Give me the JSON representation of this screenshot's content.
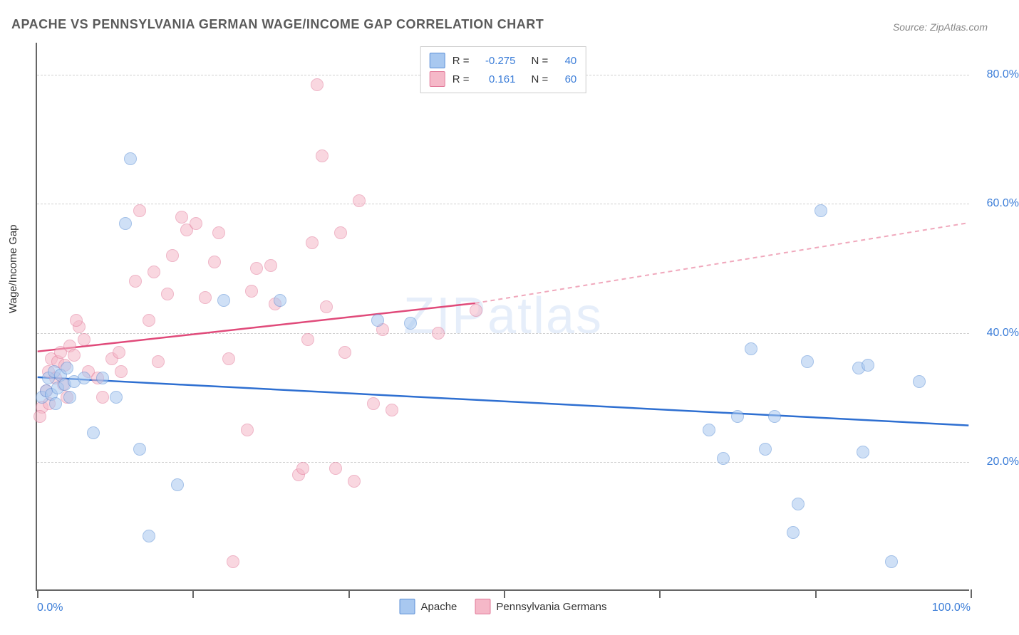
{
  "title": "APACHE VS PENNSYLVANIA GERMAN WAGE/INCOME GAP CORRELATION CHART",
  "source": "Source: ZipAtlas.com",
  "ylabel": "Wage/Income Gap",
  "watermark": "ZIPatlas",
  "chart": {
    "type": "scatter",
    "background_color": "#ffffff",
    "grid_color": "#d0d0d0",
    "axis_color": "#666666",
    "tick_label_color": "#3b7dd8",
    "tick_label_fontsize": 16,
    "title_fontsize": 18,
    "title_color": "#5a5a5a",
    "ylabel_fontsize": 15,
    "xlim": [
      0,
      100
    ],
    "ylim": [
      0,
      85
    ],
    "yticks": [
      20,
      40,
      60,
      80
    ],
    "ytick_labels": [
      "20.0%",
      "40.0%",
      "60.0%",
      "80.0%"
    ],
    "xtick_positions": [
      0,
      16.67,
      33.33,
      50,
      66.67,
      83.33,
      100
    ],
    "xtick_labels_shown": {
      "0": "0.0%",
      "100": "100.0%"
    },
    "point_radius": 9,
    "point_opacity": 0.55,
    "series": {
      "apache": {
        "label": "Apache",
        "fill_color": "#a8c8f0",
        "stroke_color": "#5b8fd6",
        "R": "-0.275",
        "N": "40",
        "trend": {
          "x1": 0,
          "y1": 33,
          "x2": 100,
          "y2": 25.5,
          "color": "#2e6fd1",
          "width": 2.5,
          "dash": "none"
        },
        "points": [
          [
            0.5,
            30
          ],
          [
            1,
            31
          ],
          [
            1.2,
            33
          ],
          [
            1.5,
            30.5
          ],
          [
            1.8,
            34
          ],
          [
            2,
            29
          ],
          [
            2.2,
            31.5
          ],
          [
            2.5,
            33.5
          ],
          [
            3,
            32
          ],
          [
            3.2,
            34.5
          ],
          [
            3.5,
            30
          ],
          [
            4,
            32.5
          ],
          [
            5,
            33
          ],
          [
            6,
            24.5
          ],
          [
            7,
            33
          ],
          [
            8.5,
            30
          ],
          [
            9.5,
            57
          ],
          [
            10,
            67
          ],
          [
            11,
            22
          ],
          [
            12,
            8.5
          ],
          [
            15,
            16.5
          ],
          [
            20,
            45
          ],
          [
            26,
            45
          ],
          [
            36.5,
            42
          ],
          [
            40,
            41.5
          ],
          [
            72,
            25
          ],
          [
            73.5,
            20.5
          ],
          [
            75,
            27
          ],
          [
            76.5,
            37.5
          ],
          [
            78,
            22
          ],
          [
            79,
            27
          ],
          [
            81,
            9
          ],
          [
            81.5,
            13.5
          ],
          [
            82.5,
            35.5
          ],
          [
            84,
            59
          ],
          [
            88,
            34.5
          ],
          [
            88.5,
            21.5
          ],
          [
            89,
            35
          ],
          [
            91.5,
            4.5
          ],
          [
            94.5,
            32.5
          ]
        ]
      },
      "penn_german": {
        "label": "Pennsylvania Germans",
        "fill_color": "#f5b8c8",
        "stroke_color": "#e27a9a",
        "R": "0.161",
        "N": "60",
        "trend_solid": {
          "x1": 0,
          "y1": 37,
          "x2": 47,
          "y2": 44.5,
          "color": "#e04a7a",
          "width": 2.5
        },
        "trend_dashed": {
          "x1": 47,
          "y1": 44.5,
          "x2": 100,
          "y2": 57,
          "color": "#f0a8bc",
          "width": 2,
          "dash": "6,5"
        },
        "points": [
          [
            0.5,
            28.5
          ],
          [
            1,
            31
          ],
          [
            1.2,
            34
          ],
          [
            1.5,
            36
          ],
          [
            2,
            33
          ],
          [
            2.2,
            35.5
          ],
          [
            2.5,
            37
          ],
          [
            3,
            35
          ],
          [
            3.2,
            30
          ],
          [
            3.5,
            38
          ],
          [
            4,
            36.5
          ],
          [
            4.5,
            41
          ],
          [
            5,
            39
          ],
          [
            5.5,
            34
          ],
          [
            7,
            30
          ],
          [
            8,
            36
          ],
          [
            9,
            34
          ],
          [
            10.5,
            48
          ],
          [
            11,
            59
          ],
          [
            12,
            42
          ],
          [
            12.5,
            49.5
          ],
          [
            13,
            35.5
          ],
          [
            14,
            46
          ],
          [
            14.5,
            52
          ],
          [
            15.5,
            58
          ],
          [
            16,
            56
          ],
          [
            17,
            57
          ],
          [
            18,
            45.5
          ],
          [
            19,
            51
          ],
          [
            19.5,
            55.5
          ],
          [
            20.5,
            36
          ],
          [
            21,
            4.5
          ],
          [
            22.5,
            25
          ],
          [
            23,
            46.5
          ],
          [
            23.5,
            50
          ],
          [
            25,
            50.5
          ],
          [
            25.5,
            44.5
          ],
          [
            28,
            18
          ],
          [
            28.5,
            19
          ],
          [
            29,
            39
          ],
          [
            29.5,
            54
          ],
          [
            30,
            78.5
          ],
          [
            30.5,
            67.5
          ],
          [
            31,
            44
          ],
          [
            32,
            19
          ],
          [
            32.5,
            55.5
          ],
          [
            33,
            37
          ],
          [
            34,
            17
          ],
          [
            34.5,
            60.5
          ],
          [
            36,
            29
          ],
          [
            37,
            40.5
          ],
          [
            38,
            28
          ],
          [
            43,
            40
          ],
          [
            47,
            43.5
          ],
          [
            0.3,
            27
          ],
          [
            1.3,
            29
          ],
          [
            2.8,
            32
          ],
          [
            4.2,
            42
          ],
          [
            6.5,
            33
          ],
          [
            8.8,
            37
          ]
        ]
      }
    }
  },
  "legend_top": {
    "R_label": "R =",
    "N_label": "N ="
  }
}
